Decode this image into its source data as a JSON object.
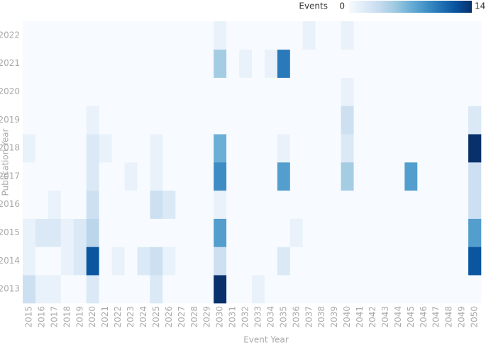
{
  "chart_data": {
    "type": "heatmap",
    "x_label": "Event Year",
    "y_label": "Publication Year",
    "colorbar_label": "Events",
    "x_categories": [
      "2015",
      "2016",
      "2017",
      "2018",
      "2019",
      "2020",
      "2021",
      "2022",
      "2023",
      "2024",
      "2025",
      "2026",
      "2027",
      "2028",
      "2029",
      "2030",
      "2031",
      "2032",
      "2033",
      "2034",
      "2035",
      "2036",
      "2037",
      "2038",
      "2039",
      "2040",
      "2041",
      "2042",
      "2043",
      "2044",
      "2045",
      "2046",
      "2047",
      "2048",
      "2049",
      "2050"
    ],
    "y_categories": [
      "2013",
      "2014",
      "2015",
      "2016",
      "2017",
      "2018",
      "2019",
      "2020",
      "2021",
      "2022"
    ],
    "values": [
      [
        3,
        1,
        1,
        0,
        0,
        2,
        0,
        0,
        0,
        0,
        2,
        0,
        0,
        0,
        0,
        14,
        0,
        0,
        1,
        0,
        0,
        0,
        0,
        0,
        0,
        0,
        0,
        0,
        0,
        0,
        0,
        0,
        0,
        0,
        0,
        0
      ],
      [
        1,
        0,
        0,
        1,
        2,
        12,
        0,
        1,
        0,
        2,
        3,
        1,
        0,
        0,
        0,
        3,
        0,
        0,
        0,
        0,
        2,
        0,
        0,
        0,
        0,
        0,
        0,
        0,
        0,
        0,
        0,
        0,
        0,
        0,
        0,
        12
      ],
      [
        1,
        2,
        2,
        1,
        2,
        4,
        0,
        0,
        0,
        0,
        0,
        0,
        0,
        0,
        0,
        8,
        0,
        0,
        0,
        0,
        0,
        1,
        0,
        0,
        0,
        0,
        0,
        0,
        0,
        0,
        0,
        0,
        0,
        0,
        0,
        8
      ],
      [
        0,
        0,
        1,
        0,
        0,
        3,
        0,
        0,
        0,
        0,
        3,
        2,
        0,
        0,
        0,
        1,
        0,
        0,
        0,
        0,
        0,
        0,
        0,
        0,
        0,
        0,
        0,
        0,
        0,
        0,
        0,
        0,
        0,
        0,
        0,
        3
      ],
      [
        0,
        0,
        0,
        0,
        0,
        2,
        0,
        0,
        1,
        0,
        1,
        0,
        0,
        0,
        0,
        9,
        0,
        0,
        0,
        0,
        8,
        0,
        0,
        0,
        0,
        5,
        0,
        0,
        0,
        0,
        8,
        0,
        0,
        0,
        0,
        3
      ],
      [
        1,
        0,
        0,
        0,
        0,
        2,
        1,
        0,
        0,
        0,
        1,
        0,
        0,
        0,
        0,
        7,
        0,
        0,
        0,
        0,
        1,
        0,
        0,
        0,
        0,
        2,
        0,
        0,
        0,
        0,
        0,
        0,
        0,
        0,
        0,
        14
      ],
      [
        0,
        0,
        0,
        0,
        0,
        1,
        0,
        0,
        0,
        0,
        0,
        0,
        0,
        0,
        0,
        0,
        0,
        0,
        0,
        0,
        0,
        0,
        0,
        0,
        0,
        3,
        0,
        0,
        0,
        0,
        0,
        0,
        0,
        0,
        0,
        2
      ],
      [
        0,
        0,
        0,
        0,
        0,
        0,
        0,
        0,
        0,
        0,
        0,
        0,
        0,
        0,
        0,
        0,
        0,
        0,
        0,
        0,
        0,
        0,
        0,
        0,
        0,
        1,
        0,
        0,
        0,
        0,
        0,
        0,
        0,
        0,
        0,
        0
      ],
      [
        0,
        0,
        0,
        0,
        0,
        0,
        0,
        0,
        0,
        0,
        0,
        0,
        0,
        0,
        0,
        5,
        0,
        1,
        0,
        1,
        10,
        0,
        0,
        0,
        0,
        0,
        0,
        0,
        0,
        0,
        0,
        0,
        0,
        0,
        0,
        0
      ],
      [
        0,
        0,
        0,
        0,
        0,
        0,
        0,
        0,
        0,
        0,
        0,
        0,
        0,
        0,
        0,
        1,
        0,
        0,
        0,
        0,
        0,
        0,
        1,
        0,
        0,
        1,
        0,
        0,
        0,
        0,
        0,
        0,
        0,
        0,
        0,
        0
      ]
    ],
    "zlim": [
      0,
      14
    ],
    "zticks": [
      0,
      14
    ],
    "colorscale": [
      "#f7fbff",
      "#deebf7",
      "#c6dbef",
      "#9ecae1",
      "#6baed6",
      "#4292c6",
      "#2171b5",
      "#08519c",
      "#08306b"
    ]
  }
}
